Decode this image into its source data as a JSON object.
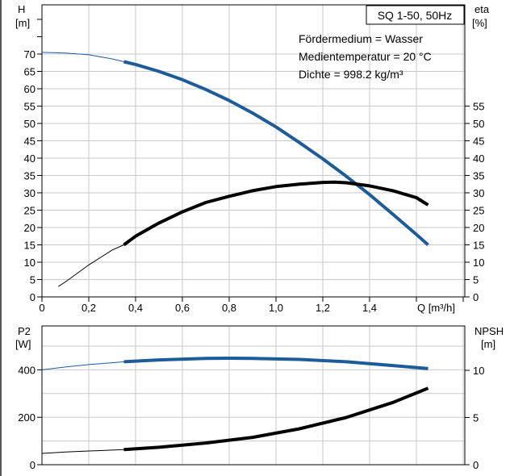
{
  "chart_data": [
    {
      "type": "line",
      "title": "SQ 1-50, 50Hz",
      "annotations": [
        "Fördermedium = Wasser",
        "Medientemperatur = 20 °C",
        "Dichte = 998.2 kg/m³"
      ],
      "y_left_label": [
        "H",
        "[m]"
      ],
      "y_right_label": [
        "eta",
        "[%]"
      ],
      "x_label": "Q [m³/h]",
      "x_ticks": [
        "0",
        "0,2",
        "0,4",
        "0,6",
        "0,8",
        "1,0",
        "1,2",
        "1,4"
      ],
      "y_left_ticks": [
        "0",
        "5",
        "10",
        "15",
        "20",
        "25",
        "30",
        "35",
        "40",
        "45",
        "50",
        "55",
        "60",
        "65",
        "70"
      ],
      "y_right_ticks": [
        "0",
        "5",
        "10",
        "15",
        "20",
        "25",
        "30",
        "35",
        "40",
        "45",
        "50",
        "55"
      ],
      "xlim": [
        0,
        1.8
      ],
      "ylim": [
        0,
        75
      ],
      "grid": true,
      "colors": {
        "head": "#1d5c99",
        "efficiency": "#000000"
      },
      "series": [
        {
          "key": "head",
          "axis": "left",
          "color": "#1d5c99",
          "x": [
            0.0,
            0.1,
            0.2,
            0.3,
            0.35,
            0.4,
            0.5,
            0.6,
            0.7,
            0.8,
            0.9,
            1.0,
            1.1,
            1.2,
            1.3,
            1.4,
            1.5,
            1.6,
            1.65
          ],
          "y": [
            70.5,
            70.3,
            69.8,
            68.6,
            67.8,
            67.0,
            65.0,
            62.6,
            59.8,
            56.6,
            53.0,
            49.0,
            44.5,
            39.8,
            34.8,
            29.5,
            23.8,
            18.0,
            15.0
          ],
          "bold_from": 0.35,
          "x_max": 1.65
        },
        {
          "key": "efficiency",
          "axis": "right",
          "color": "#000000",
          "x": [
            0.07,
            0.1,
            0.2,
            0.3,
            0.35,
            0.4,
            0.5,
            0.6,
            0.7,
            0.8,
            0.9,
            1.0,
            1.1,
            1.2,
            1.25,
            1.3,
            1.4,
            1.5,
            1.6,
            1.65
          ],
          "y": [
            3.0,
            4.3,
            9.2,
            13.5,
            15.0,
            17.5,
            21.3,
            24.5,
            27.2,
            29.0,
            30.6,
            31.8,
            32.5,
            33.0,
            33.1,
            32.9,
            32.0,
            30.6,
            28.6,
            26.5
          ],
          "bold_from": 0.35,
          "x_max": 1.65
        }
      ]
    },
    {
      "type": "line",
      "y_left_label": [
        "P2",
        "[W]"
      ],
      "y_right_label": [
        "NPSH",
        "[m]"
      ],
      "y_left_ticks": [
        "0",
        "200",
        "400"
      ],
      "y_right_ticks": [
        "0",
        "5",
        "10"
      ],
      "xlim": [
        0,
        1.8
      ],
      "ylim": [
        0,
        520
      ],
      "grid": true,
      "series": [
        {
          "key": "power",
          "axis": "left",
          "color": "#1d5c99",
          "x": [
            0.0,
            0.1,
            0.2,
            0.3,
            0.35,
            0.5,
            0.7,
            0.8,
            0.9,
            1.1,
            1.3,
            1.5,
            1.65
          ],
          "y": [
            400,
            412,
            422,
            430,
            434,
            442,
            448,
            449,
            448,
            444,
            434,
            418,
            405
          ],
          "bold_from": 0.35
        },
        {
          "key": "npsh",
          "axis": "right",
          "color": "#000000",
          "x": [
            0.0,
            0.1,
            0.2,
            0.3,
            0.35,
            0.5,
            0.7,
            0.9,
            1.1,
            1.3,
            1.5,
            1.65
          ],
          "y_right": [
            1.2,
            1.35,
            1.45,
            1.55,
            1.6,
            1.85,
            2.3,
            2.9,
            3.8,
            5.0,
            6.6,
            8.1
          ],
          "bold_from": 0.35
        }
      ]
    }
  ]
}
